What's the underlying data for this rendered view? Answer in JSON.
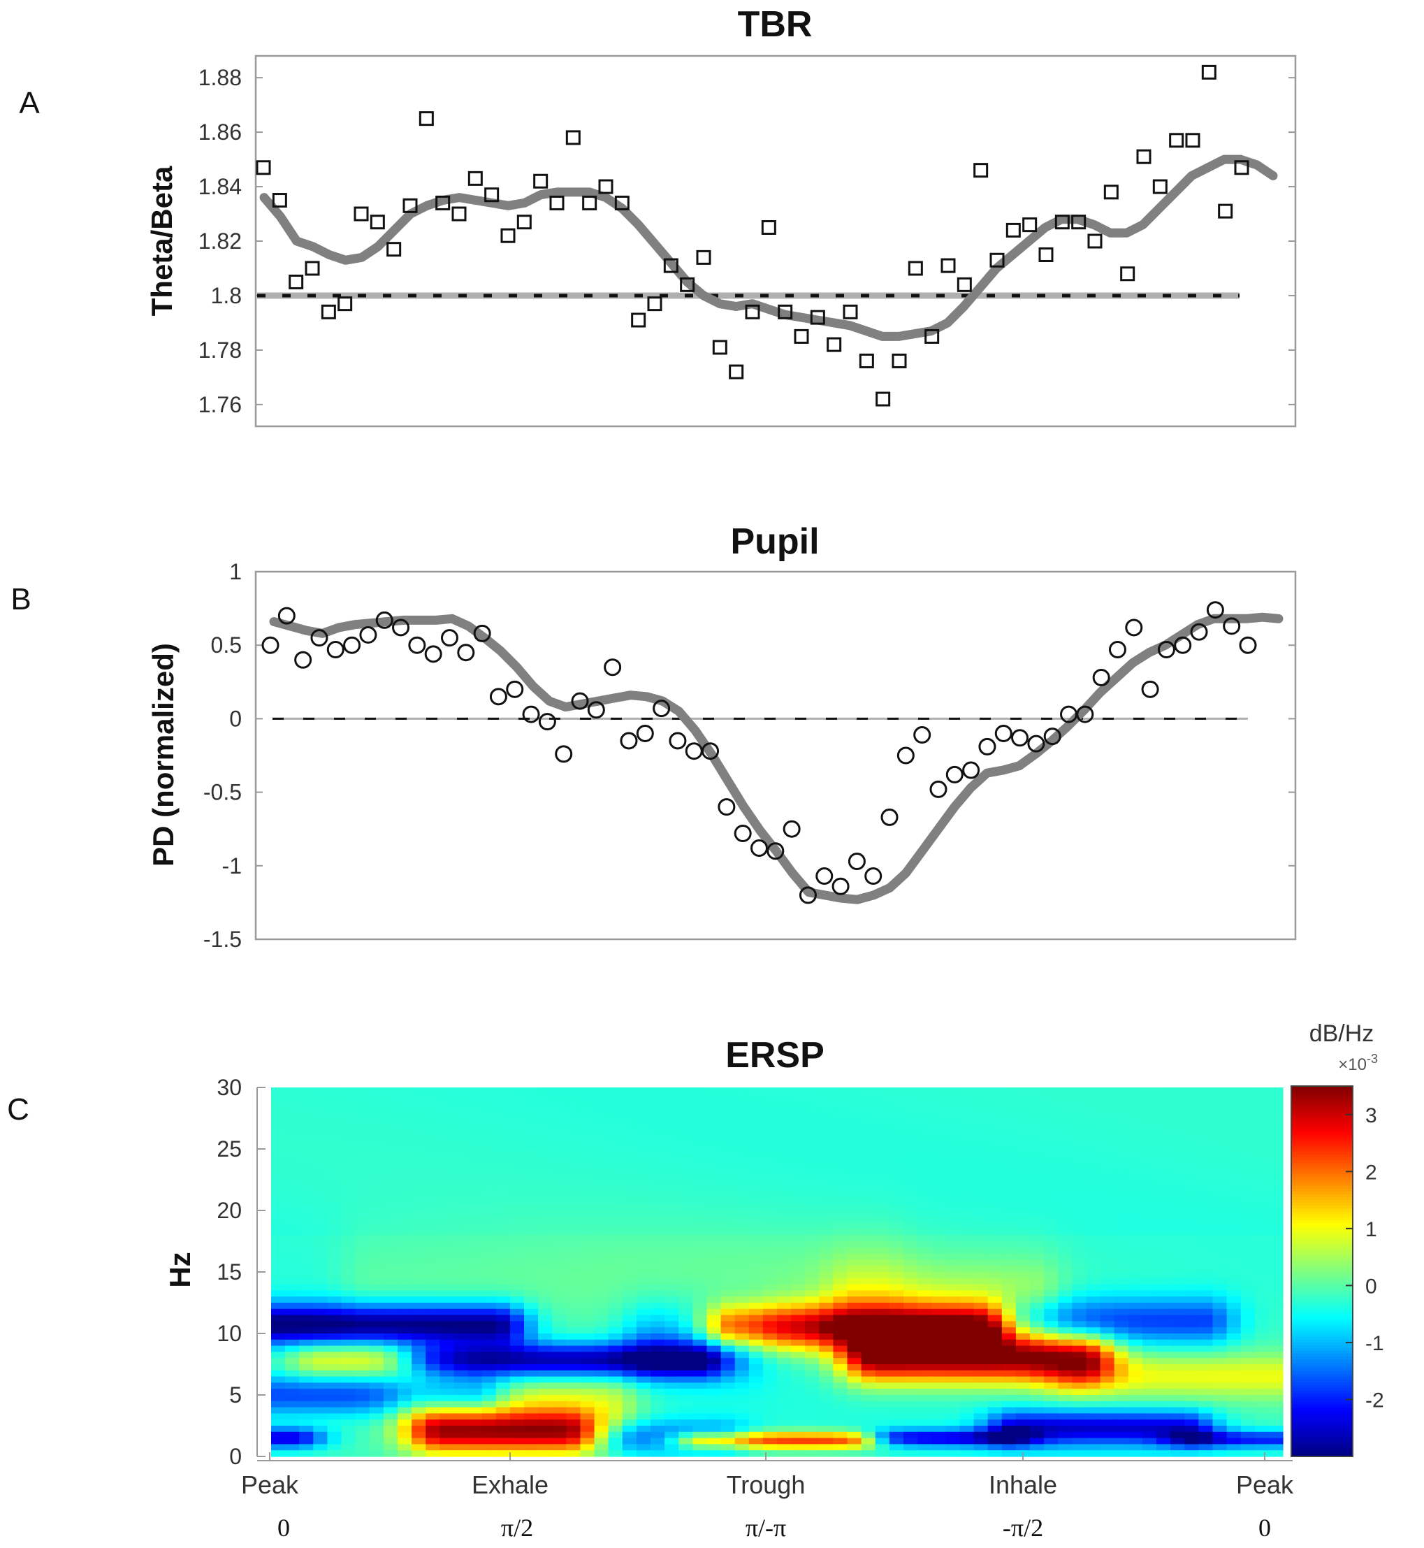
{
  "chart_data": [
    {
      "panel": "A",
      "type": "scatter",
      "title": "TBR",
      "ylabel": "Theta/Beta",
      "xlabel": "",
      "ylim": [
        1.752,
        1.888
      ],
      "yticks": [
        1.76,
        1.78,
        1.8,
        1.82,
        1.84,
        1.86,
        1.88
      ],
      "ytick_labels": [
        "1.76",
        "1.78",
        "1.8",
        "1.82",
        "1.84",
        "1.86",
        "1.88"
      ],
      "marker": "square",
      "reference_line": 1.8,
      "points_y": [
        1.847,
        1.835,
        1.805,
        1.81,
        1.794,
        1.797,
        1.83,
        1.827,
        1.817,
        1.833,
        1.865,
        1.834,
        1.83,
        1.843,
        1.837,
        1.822,
        1.827,
        1.842,
        1.834,
        1.858,
        1.834,
        1.84,
        1.834,
        1.791,
        1.797,
        1.811,
        1.804,
        1.814,
        1.781,
        1.772,
        1.794,
        1.825,
        1.794,
        1.785,
        1.792,
        1.782,
        1.794,
        1.776,
        1.762,
        1.776,
        1.81,
        1.785,
        1.811,
        1.804,
        1.846,
        1.813,
        1.824,
        1.826,
        1.815,
        1.827,
        1.827,
        1.82,
        1.838,
        1.808,
        1.851,
        1.84,
        1.857,
        1.857,
        1.882,
        1.831,
        1.847
      ],
      "series": [
        {
          "name": "smoothed",
          "values": [
            1.836,
            1.829,
            1.82,
            1.818,
            1.815,
            1.813,
            1.814,
            1.818,
            1.824,
            1.83,
            1.833,
            1.835,
            1.836,
            1.835,
            1.834,
            1.833,
            1.834,
            1.837,
            1.838,
            1.838,
            1.838,
            1.836,
            1.832,
            1.826,
            1.819,
            1.812,
            1.805,
            1.8,
            1.797,
            1.796,
            1.797,
            1.795,
            1.793,
            1.792,
            1.791,
            1.79,
            1.789,
            1.787,
            1.785,
            1.785,
            1.786,
            1.787,
            1.79,
            1.796,
            1.803,
            1.81,
            1.815,
            1.82,
            1.825,
            1.828,
            1.828,
            1.826,
            1.823,
            1.823,
            1.826,
            1.832,
            1.838,
            1.844,
            1.847,
            1.85,
            1.85,
            1.848,
            1.844
          ]
        }
      ]
    },
    {
      "panel": "B",
      "type": "scatter",
      "title": "Pupil",
      "ylabel": "PD (normalized)",
      "xlabel": "",
      "ylim": [
        -1.5,
        1
      ],
      "yticks": [
        -1.5,
        -1,
        -0.5,
        0,
        0.5,
        1
      ],
      "ytick_labels": [
        "-1.5",
        "-1",
        "-0.5",
        "0",
        "0.5",
        "1"
      ],
      "marker": "circle",
      "reference_line": 0,
      "points_y": [
        0.5,
        0.7,
        0.4,
        0.55,
        0.47,
        0.5,
        0.57,
        0.67,
        0.62,
        0.5,
        0.44,
        0.55,
        0.45,
        0.58,
        0.15,
        0.2,
        0.03,
        -0.02,
        -0.24,
        0.12,
        0.06,
        0.35,
        -0.15,
        -0.1,
        0.07,
        -0.15,
        -0.22,
        -0.22,
        -0.6,
        -0.78,
        -0.88,
        -0.9,
        -0.75,
        -1.2,
        -1.07,
        -1.14,
        -0.97,
        -1.07,
        -0.67,
        -0.25,
        -0.11,
        -0.48,
        -0.38,
        -0.35,
        -0.19,
        -0.1,
        -0.13,
        -0.17,
        -0.12,
        0.03,
        0.03,
        0.28,
        0.47,
        0.62,
        0.2,
        0.47,
        0.5,
        0.59,
        0.74,
        0.63,
        0.5
      ],
      "series": [
        {
          "name": "smoothed",
          "values": [
            0.66,
            0.63,
            0.6,
            0.58,
            0.62,
            0.64,
            0.65,
            0.66,
            0.67,
            0.67,
            0.67,
            0.68,
            0.63,
            0.55,
            0.46,
            0.35,
            0.22,
            0.12,
            0.08,
            0.1,
            0.12,
            0.14,
            0.16,
            0.15,
            0.12,
            0.05,
            -0.08,
            -0.24,
            -0.42,
            -0.6,
            -0.76,
            -0.9,
            -1.05,
            -1.18,
            -1.2,
            -1.22,
            -1.23,
            -1.2,
            -1.15,
            -1.05,
            -0.9,
            -0.75,
            -0.6,
            -0.47,
            -0.37,
            -0.35,
            -0.32,
            -0.24,
            -0.15,
            -0.05,
            0.06,
            0.18,
            0.28,
            0.38,
            0.45,
            0.5,
            0.57,
            0.64,
            0.68,
            0.68,
            0.68,
            0.69,
            0.68
          ]
        }
      ]
    },
    {
      "panel": "C",
      "type": "heatmap",
      "title": "ERSP",
      "ylabel": "Hz",
      "xlabel": "",
      "ylim": [
        0,
        30
      ],
      "yticks": [
        0,
        5,
        10,
        15,
        20,
        25,
        30
      ],
      "ytick_labels": [
        "0",
        "5",
        "10",
        "15",
        "20",
        "25",
        "30"
      ],
      "x_categories": [
        "Peak",
        "Exhale",
        "Trough",
        "Inhale",
        "Peak"
      ],
      "x_phase_labels": [
        "0",
        "π/2",
        "π/-π",
        "-π/2",
        "0"
      ],
      "colorbar": {
        "label": "dB/Hz",
        "exponent": "×10",
        "exponent_power": "-3",
        "range": [
          -3.0,
          3.5
        ],
        "ticks": [
          -2,
          -1,
          0,
          1,
          2,
          3
        ],
        "tick_labels": [
          "-2",
          "-1",
          "0",
          "1",
          "2",
          "3"
        ]
      },
      "blobs": [
        {
          "f": 1.5,
          "f_width": 0.6,
          "t_start": 0.0,
          "t_end": 0.02,
          "value": -2.2
        },
        {
          "f": 2.0,
          "f_width": 1.2,
          "t_start": 0.17,
          "t_end": 0.29,
          "value": 2.9
        },
        {
          "f": 4.0,
          "f_width": 2.0,
          "t_start": 0.15,
          "t_end": 0.33,
          "value": 1.1
        },
        {
          "f": 1.5,
          "f_width": 1.0,
          "t_start": 0.36,
          "t_end": 0.44,
          "value": -1.4
        },
        {
          "f": 1.3,
          "f_width": 0.5,
          "t_start": 0.43,
          "t_end": 0.57,
          "value": 2.6
        },
        {
          "f": 1.5,
          "f_width": 0.5,
          "t_start": 0.62,
          "t_end": 0.72,
          "value": -2.0
        },
        {
          "f": 2.3,
          "f_width": 1.0,
          "t_start": 0.74,
          "t_end": 0.9,
          "value": -2.2
        },
        {
          "f": 1.4,
          "f_width": 0.5,
          "t_start": 0.92,
          "t_end": 1.0,
          "value": -1.8
        },
        {
          "f": 5.0,
          "f_width": 1.2,
          "t_start": 0.0,
          "t_end": 0.2,
          "value": -1.6
        },
        {
          "f": 6.5,
          "f_width": 1.3,
          "t_start": 0.8,
          "t_end": 1.0,
          "value": 1.1
        },
        {
          "f": 7.8,
          "f_width": 1.0,
          "t_start": 0.16,
          "t_end": 0.42,
          "value": -2.6
        },
        {
          "f": 7.8,
          "f_width": 1.1,
          "t_start": 0.05,
          "t_end": 0.14,
          "value": 1.2
        },
        {
          "f": 8.0,
          "f_width": 1.4,
          "t_start": 0.6,
          "t_end": 0.8,
          "value": 3.3
        },
        {
          "f": 10.5,
          "f_width": 1.3,
          "t_start": 0.46,
          "t_end": 0.7,
          "value": 3.0
        },
        {
          "f": 10.7,
          "f_width": 1.2,
          "t_start": 0.0,
          "t_end": 0.22,
          "value": -2.9
        },
        {
          "f": 11.0,
          "f_width": 1.4,
          "t_start": 0.75,
          "t_end": 0.92,
          "value": -1.6
        },
        {
          "f": 9.5,
          "f_width": 2.2,
          "t_start": 0.38,
          "t_end": 0.46,
          "value": -1.0
        },
        {
          "f": 11.5,
          "f_width": 3.0,
          "t_start": 0.58,
          "t_end": 0.75,
          "value": 1.0
        },
        {
          "f": 13.5,
          "f_width": 3.5,
          "t_start": 0.1,
          "t_end": 0.6,
          "value": 0.35
        }
      ]
    }
  ]
}
